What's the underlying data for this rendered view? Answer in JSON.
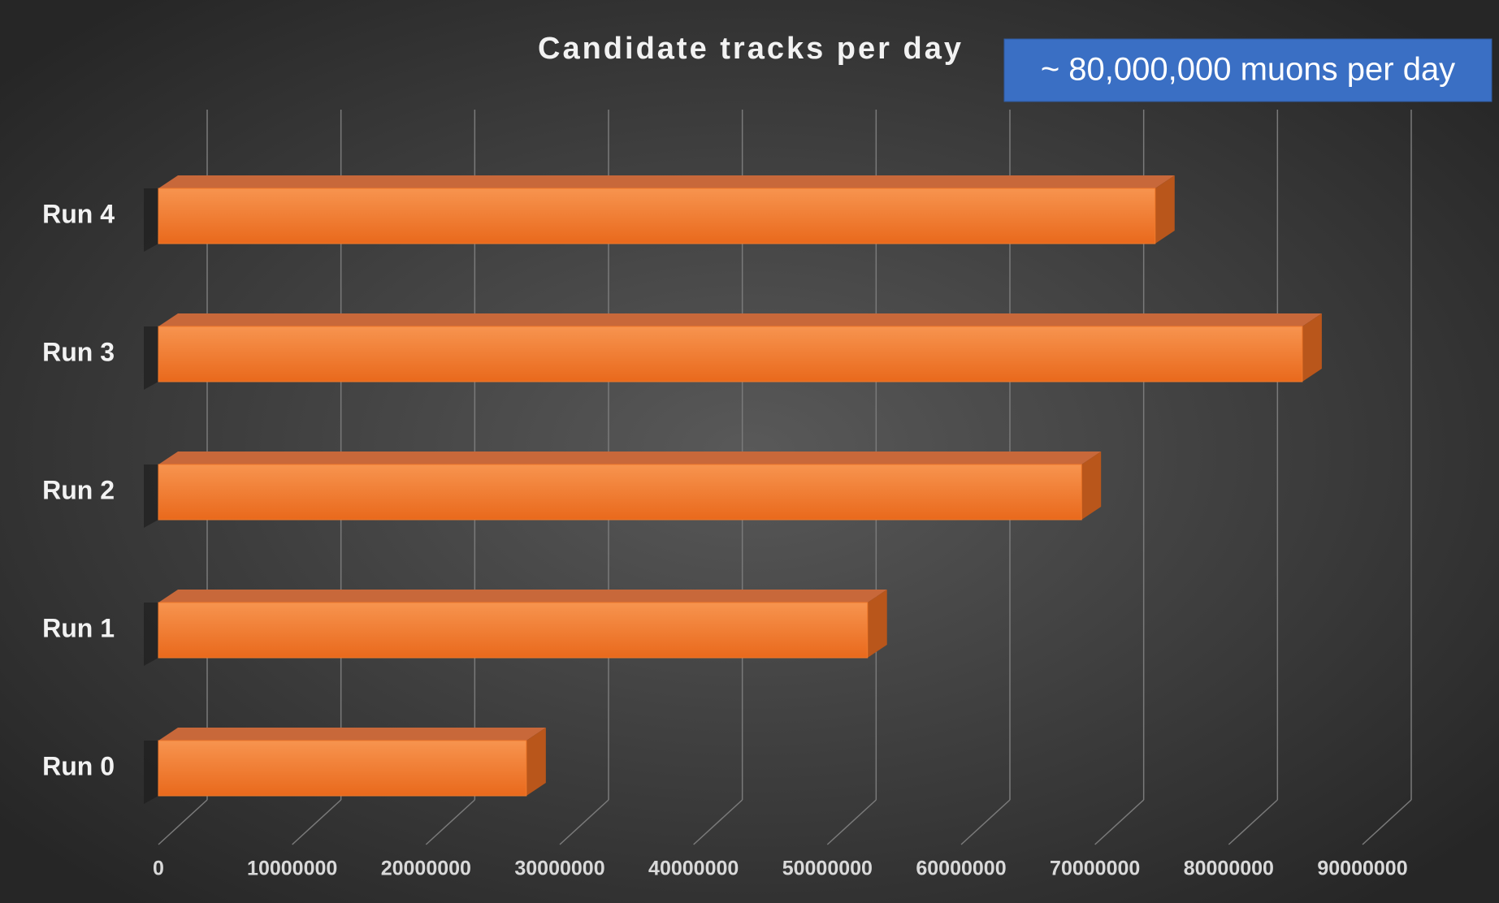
{
  "chart_data": {
    "type": "bar",
    "orientation": "horizontal",
    "title": "Candidate tracks per day",
    "annotation": "~ 80,000,000 muons per day",
    "categories": [
      "Run 0",
      "Run 1",
      "Run 2",
      "Run 3",
      "Run 4"
    ],
    "values": [
      27500000,
      53000000,
      69000000,
      85500000,
      74500000
    ],
    "color": "#f07a2c",
    "xlim": [
      0,
      90000000
    ],
    "xticks": [
      0,
      10000000,
      20000000,
      30000000,
      40000000,
      50000000,
      60000000,
      70000000,
      80000000,
      90000000
    ],
    "grid": true
  }
}
